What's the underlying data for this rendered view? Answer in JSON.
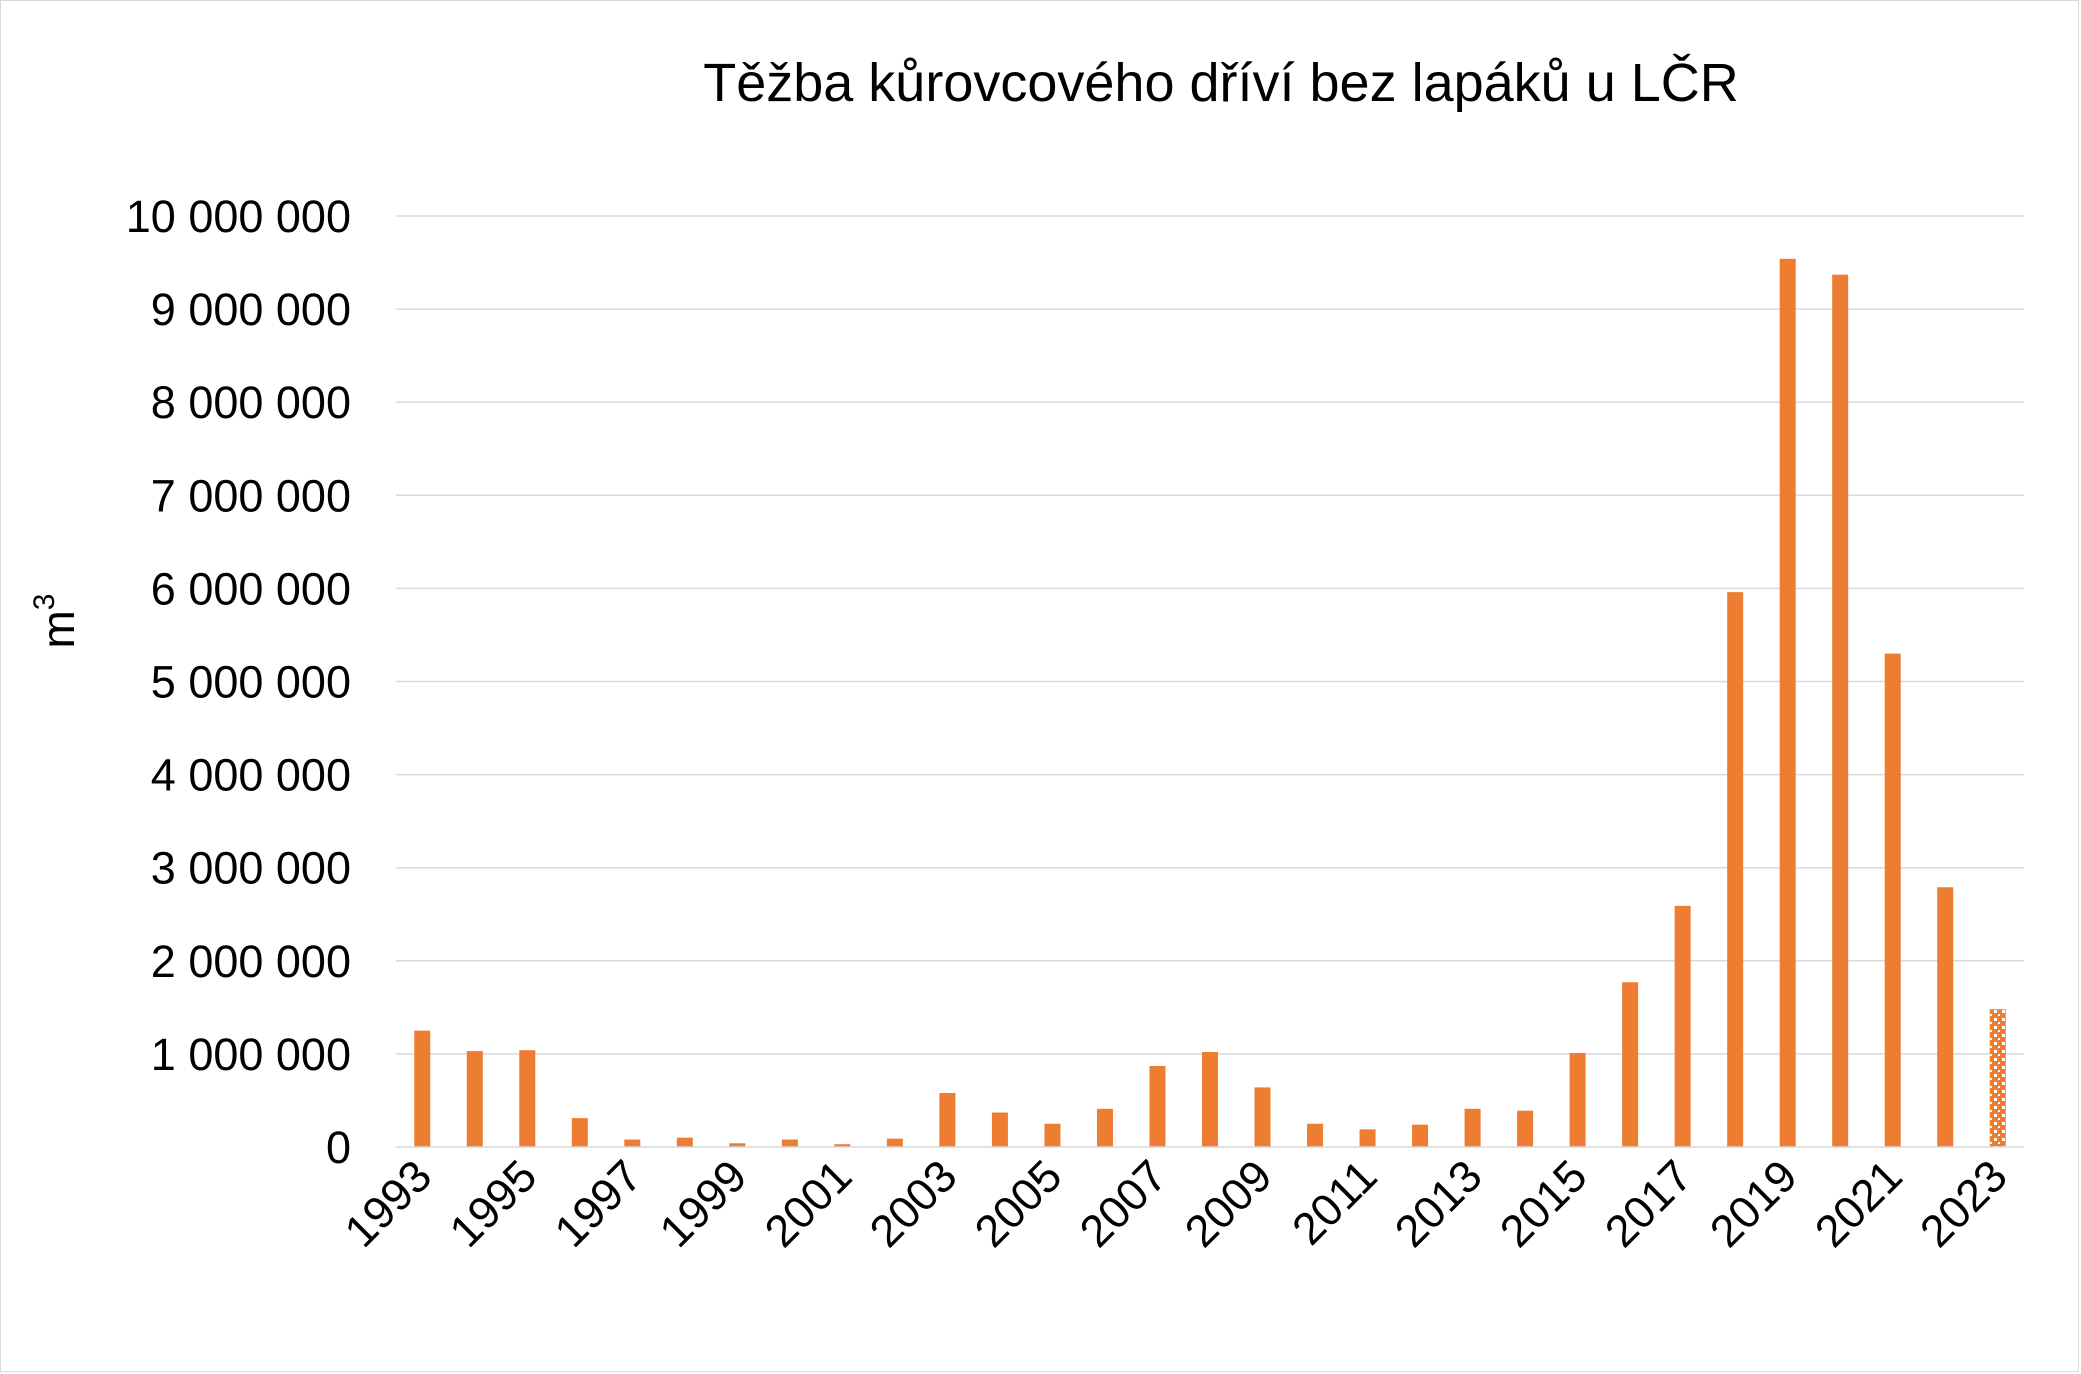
{
  "chart_data": {
    "type": "bar",
    "title": "Těžba kůrovcového dříví bez lapáků u LČR",
    "ylabel_base": "m",
    "ylabel_sup": "3",
    "xlabel": "",
    "ylim": [
      0,
      10000000
    ],
    "yticks": [
      0,
      1000000,
      2000000,
      3000000,
      4000000,
      5000000,
      6000000,
      7000000,
      8000000,
      9000000,
      10000000
    ],
    "ytick_labels": [
      "0",
      "1 000 000",
      "2 000 000",
      "3 000 000",
      "4 000 000",
      "5 000 000",
      "6 000 000",
      "7 000 000",
      "8 000 000",
      "9 000 000",
      "10 000 000"
    ],
    "categories": [
      1993,
      1994,
      1995,
      1996,
      1997,
      1998,
      1999,
      2000,
      2001,
      2002,
      2003,
      2004,
      2005,
      2006,
      2007,
      2008,
      2009,
      2010,
      2011,
      2012,
      2013,
      2014,
      2015,
      2016,
      2017,
      2018,
      2019,
      2020,
      2021,
      2022,
      2023
    ],
    "xtick_labels": [
      "1993",
      "1995",
      "1997",
      "1999",
      "2001",
      "2003",
      "2005",
      "2007",
      "2009",
      "2011",
      "2013",
      "2015",
      "2017",
      "2019",
      "2021",
      "2023"
    ],
    "values": [
      1250000,
      1030000,
      1040000,
      310000,
      80000,
      100000,
      40000,
      80000,
      30000,
      90000,
      580000,
      370000,
      250000,
      410000,
      870000,
      1020000,
      640000,
      250000,
      190000,
      240000,
      410000,
      390000,
      1010000,
      1770000,
      2590000,
      5960000,
      9540000,
      9370000,
      5300000,
      2790000,
      1480000
    ],
    "estimated_last": true,
    "grid": true,
    "bar_color": "#ED7D31",
    "grid_color": "#d9d9d9"
  }
}
